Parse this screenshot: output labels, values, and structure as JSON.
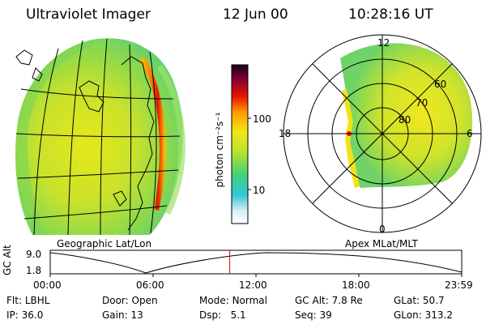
{
  "header": {
    "title": "Ultraviolet Imager",
    "date": "12 Jun 00",
    "time": "10:28:16 UT"
  },
  "left_panel": {
    "caption": "Geographic Lat/Lon"
  },
  "right_panel": {
    "caption": "Apex MLat/MLT",
    "mlt_labels": [
      "12",
      "18",
      "6",
      "0"
    ],
    "lat_labels": [
      "60",
      "70",
      "80"
    ]
  },
  "colorbar": {
    "unit_label": "photon cm⁻²s⁻¹",
    "ticks": [
      "100",
      "10"
    ],
    "scale": "log"
  },
  "timeline": {
    "ylabel": "GC Alt",
    "yticks": [
      "9.0",
      "1.8"
    ],
    "xticks": [
      "00:00",
      "06:00",
      "12:00",
      "18:00",
      "23:59"
    ],
    "current_time_fraction": 0.4363,
    "marker_color": "#e00000"
  },
  "status": {
    "flt_label": "Flt:",
    "flt_value": "LBHL",
    "door_label": "Door:",
    "door_value": "Open",
    "mode_label": "Mode:",
    "mode_value": "Normal",
    "gcalt_label": "GC Alt:",
    "gcalt_value": "7.8 Re",
    "glat_label": "GLat:",
    "glat_value": "50.7",
    "ip_label": "IP:",
    "ip_value": "36.0",
    "gain_label": "Gain:",
    "gain_value": "13",
    "dsp_label": "Dsp:",
    "dsp_value": "5.1",
    "seq_label": "Seq:",
    "seq_value": "39",
    "glon_label": "GLon:",
    "glon_value": "313.2"
  }
}
